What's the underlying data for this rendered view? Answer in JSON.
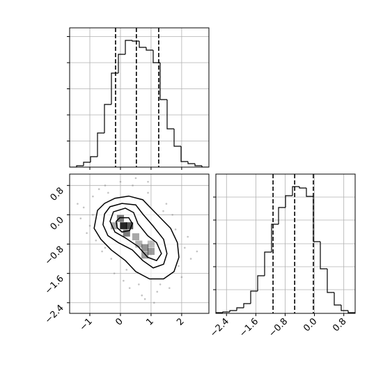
{
  "chart_data": [
    {
      "type": "histogram",
      "color": "#000000",
      "bins": [
        -1.66,
        -1.4325,
        -1.205,
        -0.9775,
        -0.75,
        -0.5225,
        -0.295,
        -0.0675,
        0.16,
        0.3875,
        0.615,
        0.8425,
        1.07,
        1.2975,
        1.525,
        1.7525,
        1.98,
        2.2075,
        2.435,
        2.6625,
        2.89
      ],
      "values": [
        0,
        2,
        7,
        15,
        49,
        90,
        135,
        162,
        182,
        181,
        172,
        168,
        150,
        97,
        55,
        30,
        8,
        5,
        2,
        0
      ],
      "quantiles": [
        -0.16,
        0.52,
        1.25
      ],
      "xlim": [
        -1.66,
        2.89
      ],
      "xticks": [
        {
          "value": -1,
          "label": "−1"
        },
        0,
        1,
        2
      ],
      "ylim": [
        0,
        200
      ],
      "yticks": [
        37.5,
        75,
        112.5,
        150,
        187.5
      ],
      "grid": true
    },
    {
      "type": "hist2d",
      "color": "#000000",
      "points": {
        "x": [
          -1.2,
          -1.0,
          -0.9,
          -1.3,
          -0.7,
          -0.5,
          -0.8,
          -1.1,
          0.0,
          0.4,
          0.9,
          1.4,
          1.8,
          2.1,
          2.3,
          2.0,
          1.6,
          1.2,
          0.6,
          0.2,
          -0.3,
          -0.6,
          -0.4,
          0.1,
          0.8,
          1.9,
          2.2,
          1.5,
          0.9,
          0.3,
          -0.9,
          -1.4,
          2.5,
          0.5,
          1.1,
          -0.2,
          1.7,
          0.7,
          -0.5,
          1.3
        ],
        "y": [
          0.2,
          -0.3,
          0.5,
          -0.1,
          0.7,
          0.8,
          -0.7,
          -0.5,
          0.9,
          0.8,
          0.6,
          0.1,
          -0.4,
          -0.9,
          -1.2,
          -1.7,
          -2.0,
          -2.1,
          -1.9,
          -1.5,
          -1.2,
          -1.0,
          0.6,
          -1.8,
          -2.3,
          -1.4,
          -0.6,
          0.3,
          0.9,
          -2.0,
          0.0,
          0.3,
          -1.0,
          1.0,
          -2.4,
          -1.6,
          0.0,
          -2.2,
          -0.9,
          -1.9
        ]
      },
      "density": {
        "x": [
          0.1,
          0.3,
          0.0,
          0.2,
          -0.2,
          0.5,
          0.8,
          1.0,
          0.8,
          0.6,
          1.0
        ],
        "y": [
          -0.3,
          -0.3,
          -0.1,
          -0.5,
          -0.3,
          -0.6,
          -0.9,
          -1.0,
          -1.1,
          -0.8,
          -0.8
        ],
        "level": [
          1.0,
          0.8,
          0.6,
          0.6,
          0.4,
          0.4,
          0.5,
          0.45,
          0.45,
          0.35,
          0.3
        ]
      },
      "contours": [
        {
          "x": [
            -0.75,
            -0.52,
            -0.18,
            0.27,
            0.73,
            0.95,
            1.3,
            1.64,
            1.86,
            1.91,
            1.75,
            1.41,
            0.95,
            0.5,
            0.16,
            -0.3,
            -0.64,
            -0.86
          ],
          "y": [
            0.12,
            0.31,
            0.45,
            0.51,
            0.41,
            0.22,
            -0.08,
            -0.37,
            -0.76,
            -1.16,
            -1.55,
            -1.75,
            -1.75,
            -1.55,
            -1.25,
            -0.96,
            -0.67,
            -0.37
          ]
        },
        {
          "x": [
            -0.52,
            -0.34,
            0.05,
            0.5,
            0.73,
            1.07,
            1.41,
            1.52,
            1.41,
            1.07,
            0.73,
            0.39,
            -0.07,
            -0.41,
            -0.57
          ],
          "y": [
            0.02,
            0.22,
            0.31,
            0.27,
            0.02,
            -0.31,
            -0.67,
            -1.06,
            -1.35,
            -1.45,
            -1.25,
            -0.96,
            -0.76,
            -0.57,
            -0.27
          ]
        },
        {
          "x": [
            -0.34,
            -0.23,
            0.16,
            0.43,
            0.57,
            0.89,
            1.18,
            1.34,
            1.18,
            0.89,
            0.57,
            0.16,
            -0.18
          ],
          "y": [
            -0.18,
            0.08,
            0.18,
            0.06,
            -0.24,
            -0.57,
            -0.76,
            -1.06,
            -1.25,
            -1.16,
            -0.86,
            -0.63,
            -0.47
          ]
        },
        {
          "x": [
            -0.14,
            -0.02,
            0.27,
            0.39,
            0.3,
            0.05,
            -0.11
          ],
          "y": [
            -0.18,
            -0.08,
            -0.08,
            -0.24,
            -0.43,
            -0.47,
            -0.35
          ]
        }
      ],
      "xlim": [
        -1.66,
        2.89
      ],
      "xticks": [
        {
          "value": -1,
          "label": "−1"
        },
        0,
        1,
        2
      ],
      "ylim": [
        -2.69,
        1.11
      ],
      "yticks": [
        {
          "value": -2.4,
          "label": "−2.4"
        },
        {
          "value": -1.6,
          "label": "−1.6"
        },
        {
          "value": -0.8,
          "label": "−0.8"
        },
        {
          "value": 0,
          "label": "0.0"
        },
        0.8
      ],
      "grid": true
    },
    {
      "type": "histogram",
      "color": "#000000",
      "bins": [
        -2.69,
        -2.5,
        -2.31,
        -2.12,
        -1.93,
        -1.74,
        -1.55,
        -1.36,
        -1.17,
        -0.98,
        -0.79,
        -0.6,
        -0.41,
        -0.22,
        -0.03,
        0.16,
        0.35,
        0.54,
        0.73,
        0.92,
        1.11
      ],
      "values": [
        1,
        2,
        4,
        8,
        14,
        32,
        54,
        88,
        128,
        152,
        169,
        182,
        180,
        168,
        103,
        64,
        30,
        12,
        4,
        1
      ],
      "quantiles": [
        -1.13,
        -0.54,
        -0.03
      ],
      "xlim": [
        -2.69,
        1.11
      ],
      "xticks": [
        {
          "value": -2.4,
          "label": "−2.4"
        },
        {
          "value": -1.6,
          "label": "−1.6"
        },
        {
          "value": -0.8,
          "label": "−0.8"
        },
        {
          "value": 0,
          "label": "0.0"
        },
        0.8
      ],
      "ylim": [
        0,
        200
      ],
      "yticks": [
        34,
        67,
        100,
        134,
        167
      ],
      "grid": true
    }
  ]
}
